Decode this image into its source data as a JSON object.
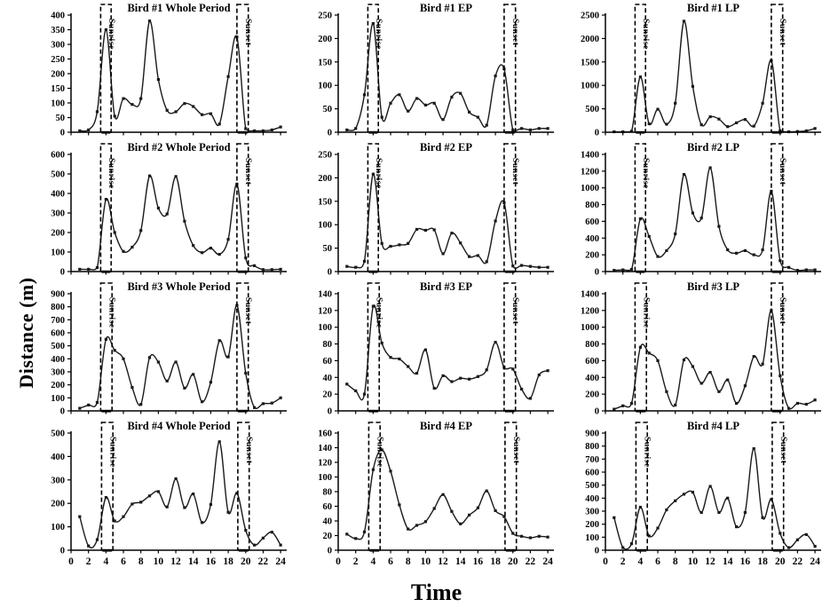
{
  "figure": {
    "ylabel": "Distance (m)",
    "xlabel": "Time",
    "band_labels": {
      "sunrise": "Sunrise",
      "sunset": "Sunset"
    },
    "line_color": "#1a1a1a",
    "axis_color": "#000000",
    "x_hours": [
      1,
      2,
      3,
      4,
      5,
      6,
      7,
      8,
      9,
      10,
      11,
      12,
      13,
      14,
      15,
      16,
      17,
      18,
      19,
      20,
      21,
      22,
      23,
      24
    ],
    "x_tick_labels": [
      0,
      2,
      4,
      6,
      8,
      10,
      12,
      14,
      16,
      18,
      20,
      22,
      24
    ],
    "xlim": [
      0,
      24.7
    ]
  },
  "chart_data": [
    {
      "id": "bird1-whole",
      "type": "line",
      "title": "Bird #1 Whole Period",
      "ylim": [
        0,
        400
      ],
      "ytick": 50,
      "values": [
        5,
        8,
        70,
        350,
        55,
        115,
        95,
        115,
        380,
        180,
        75,
        70,
        98,
        88,
        60,
        63,
        28,
        190,
        325,
        12,
        5,
        5,
        8,
        18
      ],
      "sunrise_band": [
        3.4,
        4.6
      ],
      "sunset_band": [
        19.0,
        20.3
      ],
      "show_x_labels": false
    },
    {
      "id": "bird1-ep",
      "type": "line",
      "title": "Bird #1 EP",
      "ylim": [
        0,
        250
      ],
      "ytick": 50,
      "values": [
        5,
        8,
        80,
        232,
        32,
        62,
        80,
        45,
        72,
        58,
        62,
        27,
        75,
        83,
        43,
        32,
        15,
        120,
        135,
        5,
        8,
        5,
        8,
        8
      ],
      "sunrise_band": [
        3.4,
        4.6
      ],
      "sunset_band": [
        19.0,
        20.3
      ],
      "show_x_labels": false
    },
    {
      "id": "bird1-lp",
      "type": "line",
      "title": "Bird #1 LP",
      "ylim": [
        0,
        2500
      ],
      "ytick": 500,
      "values": [
        10,
        10,
        20,
        1180,
        180,
        490,
        170,
        620,
        2370,
        980,
        160,
        330,
        280,
        120,
        200,
        270,
        130,
        620,
        1530,
        30,
        10,
        15,
        30,
        80
      ],
      "sunrise_band": [
        3.4,
        4.6
      ],
      "sunset_band": [
        19.0,
        20.3
      ],
      "show_x_labels": false
    },
    {
      "id": "bird2-whole",
      "type": "line",
      "title": "Bird #2 Whole Period",
      "ylim": [
        0,
        600
      ],
      "ytick": 100,
      "values": [
        12,
        12,
        20,
        370,
        200,
        103,
        125,
        210,
        490,
        325,
        295,
        487,
        258,
        133,
        97,
        120,
        88,
        165,
        448,
        70,
        30,
        10,
        10,
        12
      ],
      "sunrise_band": [
        3.4,
        4.6
      ],
      "sunset_band": [
        19.0,
        20.3
      ],
      "show_x_labels": false
    },
    {
      "id": "bird2-ep",
      "type": "line",
      "title": "Bird #2 EP",
      "ylim": [
        0,
        250
      ],
      "ytick": 50,
      "values": [
        11,
        9,
        22,
        208,
        60,
        54,
        57,
        60,
        90,
        88,
        89,
        38,
        82,
        61,
        32,
        34,
        21,
        108,
        147,
        12,
        13,
        11,
        9,
        9
      ],
      "sunrise_band": [
        3.4,
        4.6
      ],
      "sunset_band": [
        19.0,
        20.3
      ],
      "show_x_labels": false
    },
    {
      "id": "bird2-lp",
      "type": "line",
      "title": "Bird #2 LP",
      "ylim": [
        0,
        1400
      ],
      "ytick": 200,
      "values": [
        15,
        20,
        25,
        630,
        420,
        180,
        250,
        450,
        1160,
        700,
        640,
        1240,
        540,
        260,
        220,
        250,
        200,
        260,
        960,
        130,
        50,
        15,
        20,
        20
      ],
      "sunrise_band": [
        3.4,
        4.6
      ],
      "sunset_band": [
        19.0,
        20.3
      ],
      "show_x_labels": false
    },
    {
      "id": "bird3-whole",
      "type": "line",
      "title": "Bird #3 Whole Period",
      "ylim": [
        0,
        900
      ],
      "ytick": 100,
      "values": [
        20,
        45,
        65,
        550,
        465,
        400,
        180,
        50,
        410,
        375,
        230,
        375,
        175,
        280,
        70,
        220,
        540,
        415,
        810,
        290,
        25,
        55,
        60,
        100
      ],
      "sunrise_band": [
        3.4,
        4.7
      ],
      "sunset_band": [
        19.0,
        20.3
      ],
      "show_x_labels": false
    },
    {
      "id": "bird3-ep",
      "type": "line",
      "title": "Bird #3 EP",
      "ylim": [
        0,
        140
      ],
      "ytick": 20,
      "values": [
        32,
        24,
        20,
        125,
        81,
        64,
        62,
        53,
        45,
        73,
        27,
        42,
        35,
        39,
        38,
        41,
        49,
        82,
        52,
        50,
        26,
        15,
        43,
        48
      ],
      "sunrise_band": [
        3.4,
        4.7
      ],
      "sunset_band": [
        19.0,
        20.3
      ],
      "show_x_labels": false
    },
    {
      "id": "bird3-lp",
      "type": "line",
      "title": "Bird #3 LP",
      "ylim": [
        0,
        1400
      ],
      "ytick": 200,
      "values": [
        20,
        60,
        90,
        760,
        690,
        600,
        230,
        70,
        610,
        530,
        330,
        460,
        230,
        370,
        90,
        300,
        650,
        560,
        1200,
        420,
        30,
        90,
        80,
        130
      ],
      "sunrise_band": [
        3.4,
        4.7
      ],
      "sunset_band": [
        19.0,
        20.3
      ],
      "show_x_labels": false
    },
    {
      "id": "bird4-whole",
      "type": "line",
      "title": "Bird #4 Whole Period",
      "ylim": [
        0,
        500
      ],
      "ytick": 100,
      "values": [
        143,
        18,
        45,
        225,
        125,
        143,
        197,
        205,
        232,
        250,
        185,
        305,
        182,
        240,
        118,
        195,
        463,
        162,
        243,
        85,
        22,
        52,
        77,
        22
      ],
      "sunrise_band": [
        3.5,
        4.8
      ],
      "sunset_band": [
        19.1,
        20.4
      ],
      "show_x_labels": true
    },
    {
      "id": "bird4-ep",
      "type": "line",
      "title": "Bird #4 EP",
      "ylim": [
        0,
        160
      ],
      "ytick": 20,
      "values": [
        22,
        16,
        25,
        110,
        137,
        108,
        62,
        29,
        34,
        39,
        57,
        76,
        53,
        36,
        48,
        58,
        81,
        54,
        46,
        23,
        19,
        17,
        19,
        18
      ],
      "sunrise_band": [
        3.5,
        4.8
      ],
      "sunset_band": [
        19.1,
        20.4
      ],
      "show_x_labels": true
    },
    {
      "id": "bird4-lp",
      "type": "line",
      "title": "Bird #4 LP",
      "ylim": [
        0,
        900
      ],
      "ytick": 100,
      "values": [
        250,
        20,
        50,
        330,
        110,
        170,
        310,
        380,
        430,
        445,
        290,
        490,
        290,
        400,
        180,
        290,
        780,
        250,
        390,
        130,
        20,
        80,
        120,
        30
      ],
      "sunrise_band": [
        3.5,
        4.8
      ],
      "sunset_band": [
        19.1,
        20.4
      ],
      "show_x_labels": true
    }
  ]
}
